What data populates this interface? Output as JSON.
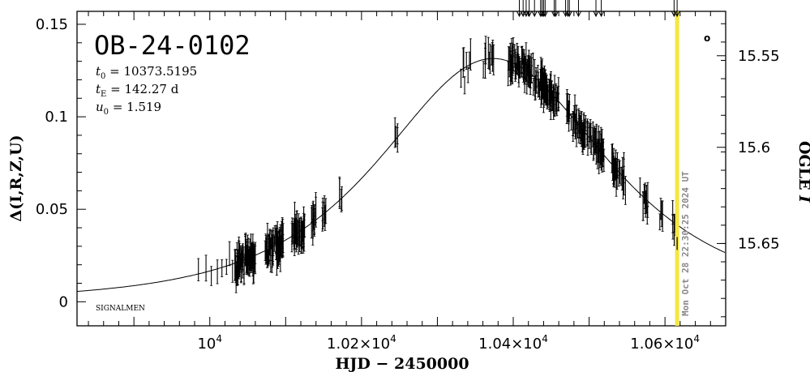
{
  "chart_data": {
    "type": "scatter",
    "title": "OB-24-0102",
    "params": {
      "t0": "10373.5195",
      "tE": "142.27 d",
      "u0": "1.519"
    },
    "xlabel": "HJD − 2450000",
    "ylabel_left": "Δ(I,R,Z,U)",
    "ylabel_right_prefix": "OGLE ",
    "ylabel_right_band": "I",
    "xlim": [
      9825,
      10680
    ],
    "ylim": [
      -0.013,
      0.157
    ],
    "x_ticks": [
      {
        "value": 10000,
        "mantissa": "",
        "exp": "4"
      },
      {
        "value": 10200,
        "mantissa": "1.02×",
        "exp": "4"
      },
      {
        "value": 10400,
        "mantissa": "1.04×",
        "exp": "4"
      },
      {
        "value": 10600,
        "mantissa": "1.06×",
        "exp": "4"
      }
    ],
    "y_ticks": [
      {
        "value": 0,
        "label": "0"
      },
      {
        "value": 0.05,
        "label": "0.05"
      },
      {
        "value": 0.1,
        "label": "0.1"
      },
      {
        "value": 0.15,
        "label": "0.15"
      }
    ],
    "y_right_ticks": [
      {
        "value": 0.133,
        "label": "15.55"
      },
      {
        "value": 0.0835,
        "label": "15.6"
      },
      {
        "value": 0.0315,
        "label": "15.65"
      }
    ],
    "model": {
      "t0": 10373.5195,
      "tE": 142.27,
      "u0": 1.519,
      "peak": 0.1315,
      "baseline": 0.0
    },
    "current_time": 10616,
    "current_time_label": "Mon Oct 28 22:30:25 2024 UT",
    "marker_label": "o",
    "watermark": "SIGNALMEN",
    "arrows_x": [
      10408,
      10413,
      10417,
      10421,
      10428,
      10436,
      10438,
      10440,
      10442,
      10454,
      10456,
      10469,
      10472,
      10474,
      10486,
      10509,
      10516
    ],
    "colors": {
      "now_line": "#f5e642",
      "stamp": "#888888",
      "data": "#000000"
    }
  },
  "labels": {
    "sig": "SIGNALMEN"
  }
}
